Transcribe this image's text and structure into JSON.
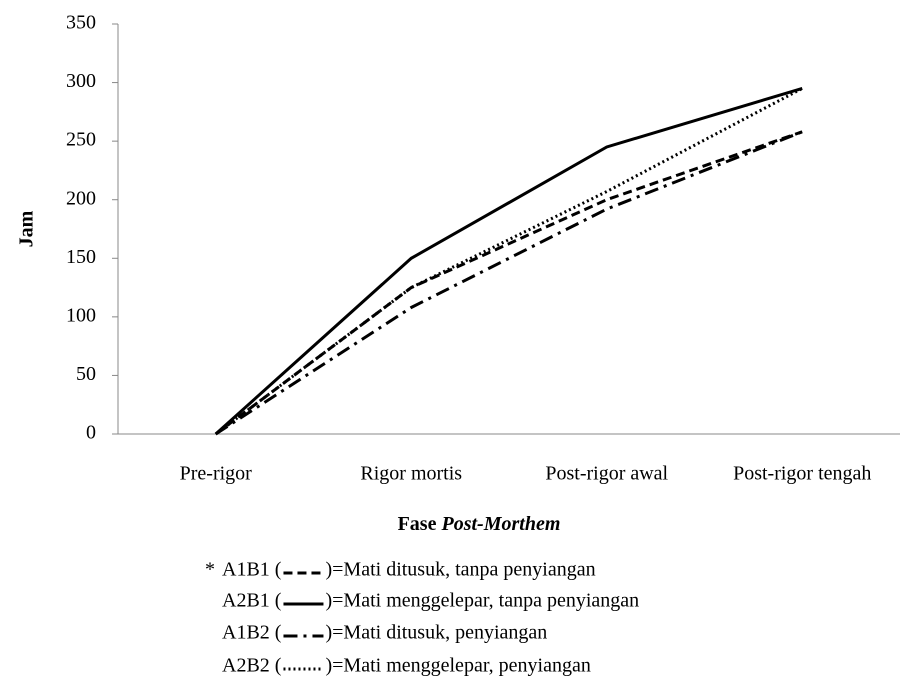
{
  "chart_data": {
    "type": "line",
    "ylabel": "Jam",
    "xlabel": "Fase",
    "xlabel_italic": "Post-Morthem",
    "categories": [
      "Pre-rigor",
      "Rigor mortis",
      "Post-rigor awal",
      "Post-rigor tengah"
    ],
    "ylim": [
      0,
      350
    ],
    "yticks": [
      0,
      50,
      100,
      150,
      200,
      250,
      300,
      350
    ],
    "legend_note": "*",
    "legend_brackets": [
      "(",
      ")"
    ],
    "series": [
      {
        "name": "A1B1",
        "description": "=Mati ditusuk, tanpa penyiangan",
        "color": "#000000",
        "dash": "dashed",
        "values": [
          0,
          125,
          200,
          258
        ]
      },
      {
        "name": "A2B1",
        "description": "=Mati menggelepar, tanpa penyiangan",
        "color": "#000000",
        "dash": "solid",
        "values": [
          0,
          150,
          245,
          295
        ]
      },
      {
        "name": "A1B2",
        "description": "=Mati ditusuk, penyiangan",
        "color": "#000000",
        "dash": "dashdot",
        "values": [
          0,
          108,
          192,
          258
        ]
      },
      {
        "name": "A2B2",
        "description": "=Mati menggelepar, penyiangan",
        "color": "#000000",
        "dash": "dotted",
        "values": [
          0,
          125,
          207,
          295
        ]
      }
    ]
  }
}
